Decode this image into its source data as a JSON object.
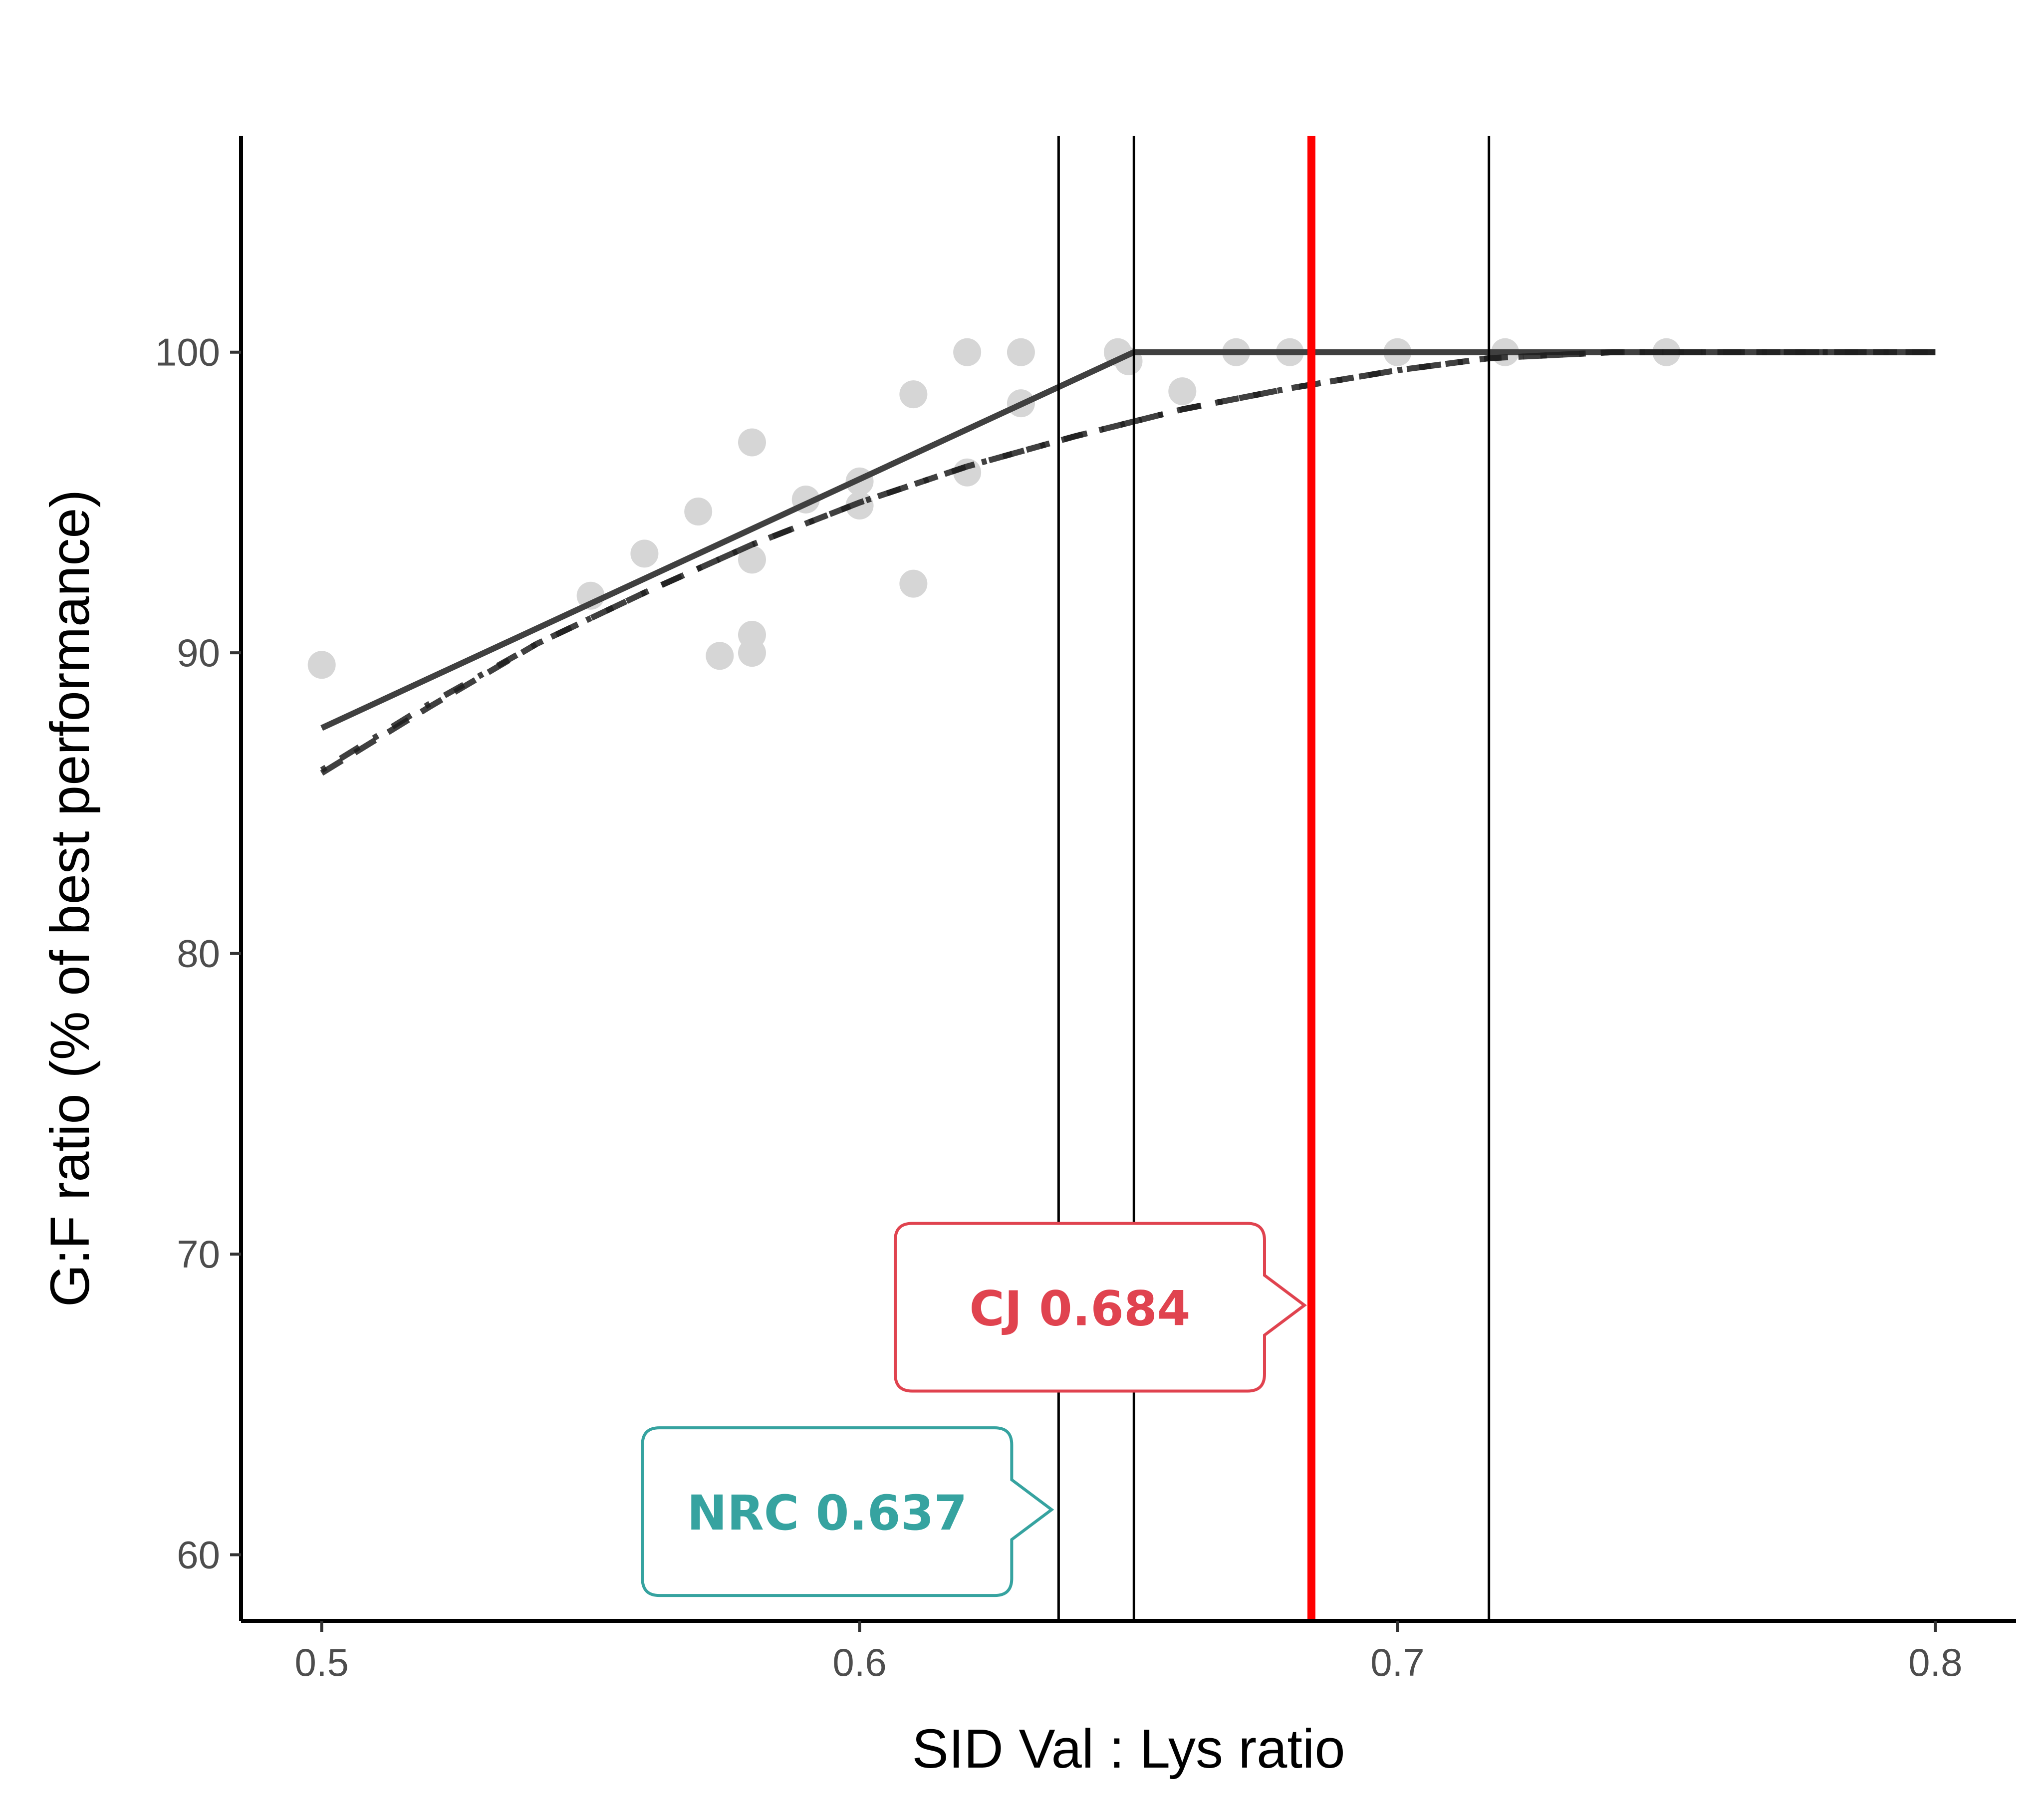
{
  "chart_data": {
    "type": "scatter",
    "title": "",
    "xlabel": "SID Val : Lys ratio",
    "ylabel": "G:F ratio (% of best performance)",
    "xlim": [
      0.485,
      0.815
    ],
    "ylim": [
      57.8,
      107.2
    ],
    "x_ticks": [
      0.5,
      0.6,
      0.7,
      0.8
    ],
    "x_tick_labels": [
      "0.5",
      "0.6",
      "0.7",
      "0.8"
    ],
    "y_ticks": [
      60,
      70,
      80,
      90,
      100
    ],
    "y_tick_labels": [
      "60",
      "70",
      "80",
      "90",
      "100"
    ],
    "grid": false,
    "legend": "none",
    "points": [
      {
        "x": 0.5,
        "y": 89.6
      },
      {
        "x": 0.55,
        "y": 91.9
      },
      {
        "x": 0.56,
        "y": 93.3
      },
      {
        "x": 0.57,
        "y": 94.7
      },
      {
        "x": 0.574,
        "y": 89.9
      },
      {
        "x": 0.58,
        "y": 97.0
      },
      {
        "x": 0.58,
        "y": 93.1
      },
      {
        "x": 0.58,
        "y": 90.6
      },
      {
        "x": 0.58,
        "y": 90.0
      },
      {
        "x": 0.59,
        "y": 95.1
      },
      {
        "x": 0.6,
        "y": 95.7
      },
      {
        "x": 0.6,
        "y": 94.9
      },
      {
        "x": 0.61,
        "y": 98.6
      },
      {
        "x": 0.61,
        "y": 92.3
      },
      {
        "x": 0.62,
        "y": 100.0
      },
      {
        "x": 0.62,
        "y": 96.0
      },
      {
        "x": 0.63,
        "y": 100.0
      },
      {
        "x": 0.63,
        "y": 98.3
      },
      {
        "x": 0.648,
        "y": 100.0
      },
      {
        "x": 0.65,
        "y": 99.7
      },
      {
        "x": 0.66,
        "y": 98.7
      },
      {
        "x": 0.67,
        "y": 100.0
      },
      {
        "x": 0.68,
        "y": 100.0
      },
      {
        "x": 0.7,
        "y": 100.0
      },
      {
        "x": 0.72,
        "y": 100.0
      },
      {
        "x": 0.75,
        "y": 100.0
      }
    ],
    "series": [
      {
        "style": "solid",
        "x": [
          0.5,
          0.651,
          0.8
        ],
        "y": [
          87.5,
          100.0,
          100.0
        ]
      },
      {
        "style": "dashed",
        "x": [
          0.5,
          0.52,
          0.54,
          0.56,
          0.58,
          0.6,
          0.62,
          0.64,
          0.66,
          0.68,
          0.7,
          0.717,
          0.74,
          0.76,
          0.78,
          0.8
        ],
        "y": [
          86.0,
          88.2,
          90.3,
          92.0,
          93.6,
          95.0,
          96.2,
          97.2,
          98.1,
          98.8,
          99.4,
          99.8,
          100.0,
          100.0,
          100.0,
          100.0
        ]
      },
      {
        "style": "dotdash",
        "x": [
          0.5,
          0.52,
          0.54,
          0.56,
          0.58,
          0.6,
          0.62,
          0.64,
          0.66,
          0.68,
          0.7,
          0.717,
          0.74,
          0.76,
          0.78,
          0.8
        ],
        "y": [
          86.1,
          88.3,
          90.3,
          92.0,
          93.6,
          95.0,
          96.2,
          97.2,
          98.1,
          98.8,
          99.4,
          99.8,
          100.0,
          100.0,
          100.0,
          100.0
        ]
      }
    ],
    "vlines": [
      {
        "x": 0.637,
        "color": "#000000"
      },
      {
        "x": 0.651,
        "color": "#000000"
      },
      {
        "x": 0.684,
        "color": "#ff0000"
      },
      {
        "x": 0.717,
        "color": "#000000"
      }
    ],
    "annotations": [
      {
        "text": "CJ 0.684",
        "x": 0.684,
        "y": 68.3,
        "color": "#e0434f"
      },
      {
        "text": "NRC 0.637",
        "x": 0.637,
        "y": 61.5,
        "color": "#36a3a0"
      }
    ],
    "colors": {
      "points": "#d6d6d6",
      "lines": "#404040",
      "axis": "#000000"
    }
  }
}
